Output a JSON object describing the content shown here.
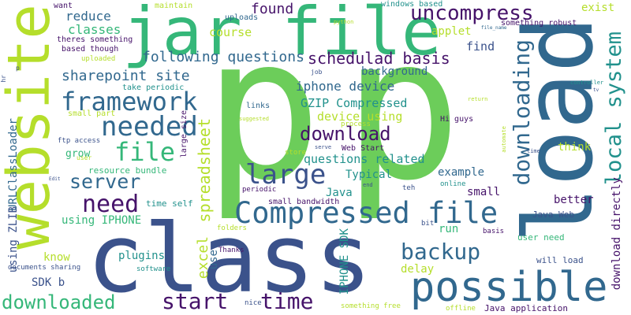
{
  "palette": {
    "dark_purple": "#46136a",
    "indigo": "#3b528b",
    "blue": "#31688e",
    "teal": "#21918c",
    "green": "#35b779",
    "light_green": "#6ccd5a",
    "yellow_green": "#b5de2b",
    "yellow": "#dde318",
    "background": "#ffffff"
  },
  "words": [
    {
      "id": "p1",
      "text": "p"
    },
    {
      "id": "p2",
      "text": "p"
    },
    {
      "id": "class",
      "text": "class"
    },
    {
      "id": "load",
      "text": "load"
    },
    {
      "id": "website",
      "text": "website"
    },
    {
      "id": "jar-file",
      "text": "jar file"
    },
    {
      "id": "possible",
      "text": "possible"
    },
    {
      "id": "compressed-file",
      "text": "Compressed file"
    },
    {
      "id": "framework",
      "text": "framework"
    },
    {
      "id": "needed",
      "text": "needed"
    },
    {
      "id": "file",
      "text": "file"
    },
    {
      "id": "large",
      "text": "large"
    },
    {
      "id": "need",
      "text": "need"
    },
    {
      "id": "server",
      "text": "server"
    },
    {
      "id": "start",
      "text": "start"
    },
    {
      "id": "time",
      "text": "time"
    },
    {
      "id": "downloading",
      "text": "downloading"
    },
    {
      "id": "local-system",
      "text": "local system"
    },
    {
      "id": "backup",
      "text": "backup"
    },
    {
      "id": "download",
      "text": "download"
    },
    {
      "id": "downloaded",
      "text": "downloaded"
    },
    {
      "id": "uncompress",
      "text": "uncompress"
    },
    {
      "id": "schedulad-basis",
      "text": "schedulad basis"
    },
    {
      "id": "sharepoint-site",
      "text": "sharepoint site"
    },
    {
      "id": "following-questions",
      "text": "following questions"
    },
    {
      "id": "spreadsheet",
      "text": "spreadsheet"
    },
    {
      "id": "urlclassloader",
      "text": "URLClassLoader"
    },
    {
      "id": "using-zlib",
      "text": "using ZLIB"
    },
    {
      "id": "excel",
      "text": "excel"
    },
    {
      "id": "iphone-sdk",
      "text": "IPHONE SDK"
    },
    {
      "id": "download-directly",
      "text": "download directly"
    },
    {
      "id": "found",
      "text": "found"
    },
    {
      "id": "reduce",
      "text": "reduce"
    },
    {
      "id": "classes",
      "text": "classes"
    },
    {
      "id": "course",
      "text": "course"
    },
    {
      "id": "applet",
      "text": "applet"
    },
    {
      "id": "find",
      "text": "find"
    },
    {
      "id": "exist",
      "text": "exist"
    },
    {
      "id": "background",
      "text": "background"
    },
    {
      "id": "iphone-device",
      "text": "iphone device"
    },
    {
      "id": "gzip-compressed",
      "text": "GZIP Compressed"
    },
    {
      "id": "device-using",
      "text": "device using"
    },
    {
      "id": "questions-related",
      "text": "questions related"
    },
    {
      "id": "typical",
      "text": "Typical"
    },
    {
      "id": "example",
      "text": "example"
    },
    {
      "id": "java",
      "text": "Java"
    },
    {
      "id": "small",
      "text": "small"
    },
    {
      "id": "think",
      "text": "think"
    },
    {
      "id": "better",
      "text": "better"
    },
    {
      "id": "java-web",
      "text": "Java Web"
    },
    {
      "id": "user-need",
      "text": "user need"
    },
    {
      "id": "will-load",
      "text": "will load"
    },
    {
      "id": "delay",
      "text": "delay"
    },
    {
      "id": "run",
      "text": "run"
    },
    {
      "id": "plugins",
      "text": "plugins"
    },
    {
      "id": "know",
      "text": "know"
    },
    {
      "id": "sdk-b",
      "text": "SDK b"
    },
    {
      "id": "using-iphone",
      "text": "using IPHONE"
    },
    {
      "id": "grow",
      "text": "grow"
    },
    {
      "id": "resource-bundle",
      "text": "resource bundle"
    },
    {
      "id": "time-self",
      "text": "time self"
    },
    {
      "id": "use",
      "text": "use"
    },
    {
      "id": "want",
      "text": "want"
    },
    {
      "id": "maintain",
      "text": "maintain"
    },
    {
      "id": "uploads",
      "text": "uploads"
    },
    {
      "id": "windows-based",
      "text": "windows based"
    },
    {
      "id": "something-robust",
      "text": "something robust"
    },
    {
      "id": "theres-something",
      "text": "theres something"
    },
    {
      "id": "based-though",
      "text": "based though"
    },
    {
      "id": "uploaded",
      "text": "uploaded"
    },
    {
      "id": "python",
      "text": "python"
    },
    {
      "id": "file-name",
      "text": "file_name"
    },
    {
      "id": "take-periodic",
      "text": "take periodic"
    },
    {
      "id": "small-part",
      "text": "small part"
    },
    {
      "id": "ftp-access",
      "text": "ftp access"
    },
    {
      "id": "large-size",
      "text": "large size"
    },
    {
      "id": "links",
      "text": "links"
    },
    {
      "id": "suggested",
      "text": "suggested"
    },
    {
      "id": "process",
      "text": "process"
    },
    {
      "id": "hi-guys",
      "text": "Hi guys"
    },
    {
      "id": "job",
      "text": "job"
    },
    {
      "id": "controller",
      "text": "controller"
    },
    {
      "id": "return",
      "text": "return"
    },
    {
      "id": "automate",
      "text": "automate"
    },
    {
      "id": "store",
      "text": "store"
    },
    {
      "id": "serve",
      "text": "serve"
    },
    {
      "id": "web-start",
      "text": "Web Start"
    },
    {
      "id": "online",
      "text": "online"
    },
    {
      "id": "teh",
      "text": "teh"
    },
    {
      "id": "end",
      "text": "end"
    },
    {
      "id": "periodic",
      "text": "periodic"
    },
    {
      "id": "small-bandwidth",
      "text": "small bandwidth"
    },
    {
      "id": "folders",
      "text": "folders"
    },
    {
      "id": "bit",
      "text": "bit"
    },
    {
      "id": "basis",
      "text": "basis"
    },
    {
      "id": "thanks",
      "text": "Thanks"
    },
    {
      "id": "documents-sharing",
      "text": "documents sharing"
    },
    {
      "id": "software",
      "text": "software"
    },
    {
      "id": "nice",
      "text": "nice"
    },
    {
      "id": "something-free",
      "text": "something free"
    },
    {
      "id": "offline",
      "text": "offline"
    },
    {
      "id": "java-application",
      "text": "Java application"
    },
    {
      "id": "hr",
      "text": "hr"
    },
    {
      "id": "user",
      "text": "user"
    },
    {
      "id": "edit",
      "text": "Edit"
    },
    {
      "id": "p-small",
      "text": "p"
    },
    {
      "id": "tv",
      "text": "tv"
    },
    {
      "id": "time-small",
      "text": "time"
    }
  ]
}
